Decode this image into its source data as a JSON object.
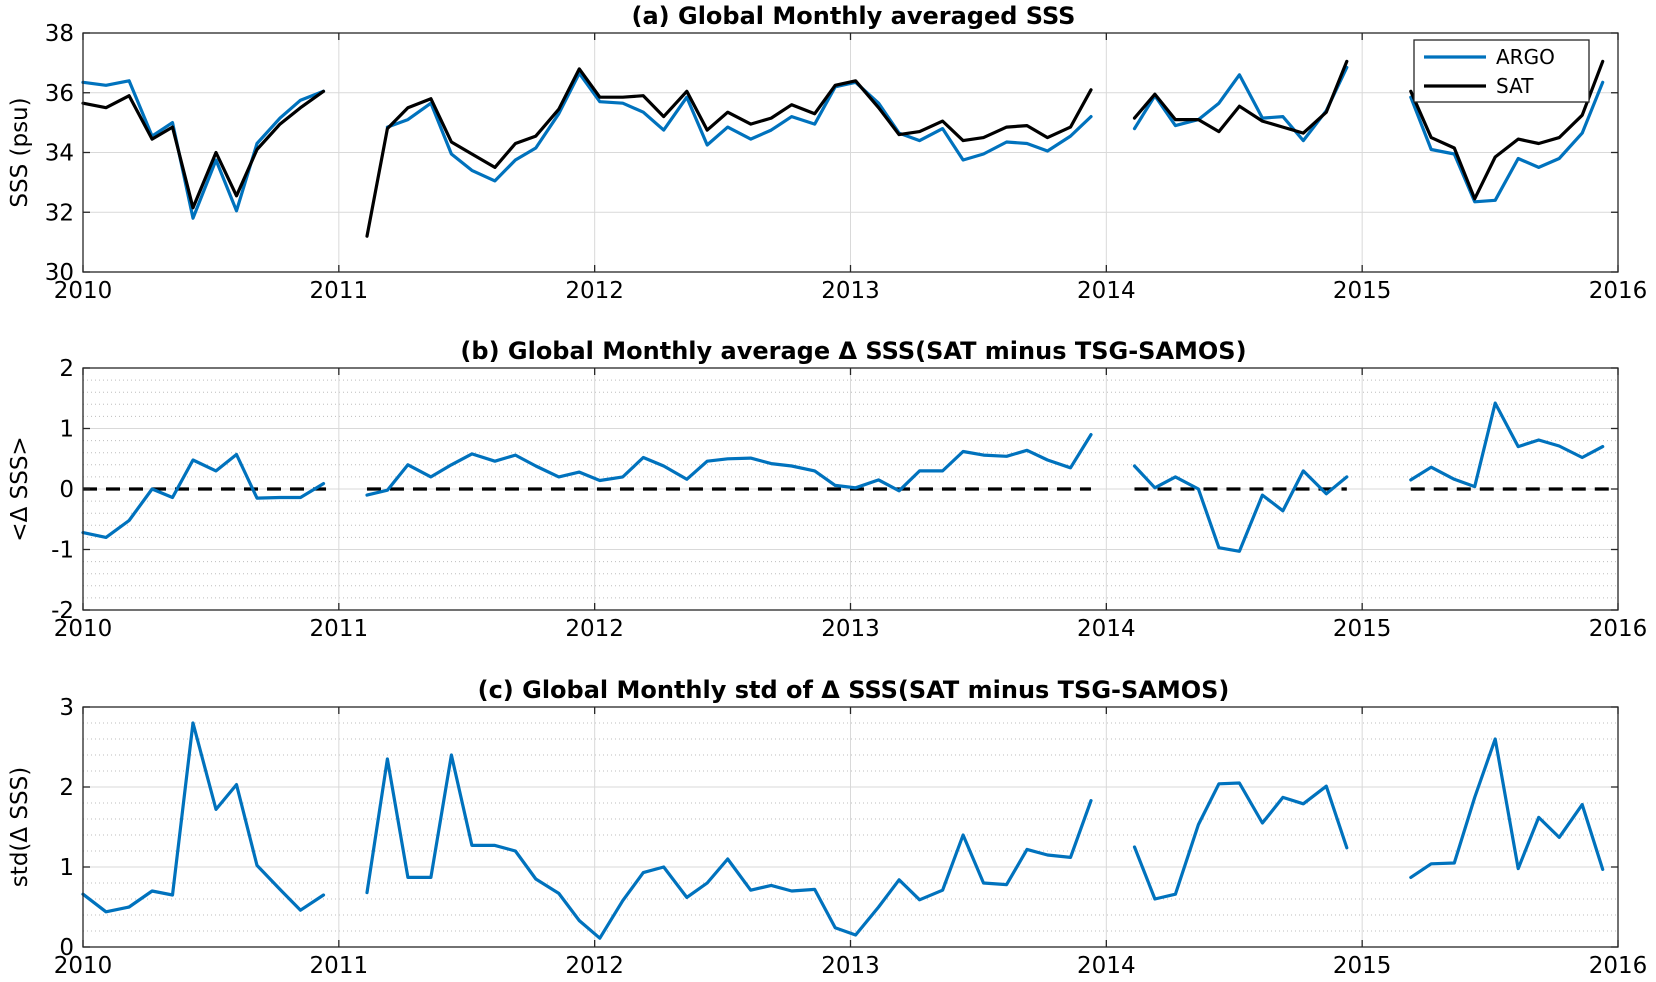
{
  "colors": {
    "argo": "#0072BD",
    "sat": "#000000",
    "grid_major": "#d9d9d9",
    "grid_minor": "#bdbdbd",
    "zero_line": "#000000"
  },
  "chart_data": [
    {
      "type": "line",
      "title": "(a) Global Monthly averaged SSS",
      "xlabel": "",
      "ylabel": "SSS (psu)",
      "xlim": [
        2010,
        2016
      ],
      "ylim": [
        30,
        38
      ],
      "x_ticks": [
        2010,
        2011,
        2012,
        2013,
        2014,
        2015,
        2016
      ],
      "x_tick_labels": [
        "2010",
        "2011",
        "2012",
        "2013",
        "2014",
        "2015",
        "2016"
      ],
      "y_ticks": [
        30,
        32,
        34,
        36,
        38
      ],
      "y_tick_labels": [
        "30",
        "32",
        "34",
        "36",
        "38"
      ],
      "grid": "on",
      "minor_grid": false,
      "legend_position": "top-right",
      "reference_line": null,
      "series": [
        {
          "name": "ARGO",
          "color": "#0072BD",
          "segments": [
            {
              "x": [
                2010.0,
                2010.09,
                2010.18,
                2010.27,
                2010.35,
                2010.43,
                2010.52,
                2010.6,
                2010.68,
                2010.77,
                2010.85,
                2010.94
              ],
              "y": [
                36.35,
                36.25,
                36.4,
                34.55,
                35.0,
                31.8,
                33.75,
                32.05,
                34.3,
                35.15,
                35.75,
                36.05
              ]
            },
            {
              "x": [
                2011.19,
                2011.27,
                2011.36,
                2011.44,
                2011.52,
                2011.61,
                2011.69,
                2011.77,
                2011.86,
                2011.94,
                2012.02,
                2012.11,
                2012.19,
                2012.27,
                2012.36,
                2012.44,
                2012.52,
                2012.61,
                2012.69,
                2012.77,
                2012.86,
                2012.94,
                2013.02,
                2013.11,
                2013.19,
                2013.27,
                2013.36,
                2013.44,
                2013.52,
                2013.61,
                2013.69,
                2013.77,
                2013.86,
                2013.94
              ],
              "y": [
                34.85,
                35.1,
                35.65,
                33.95,
                33.4,
                33.05,
                33.75,
                34.15,
                35.3,
                36.65,
                35.7,
                35.65,
                35.35,
                34.75,
                35.85,
                34.25,
                34.85,
                34.45,
                34.75,
                35.2,
                34.95,
                36.2,
                36.35,
                35.65,
                34.65,
                34.4,
                34.8,
                33.75,
                33.95,
                34.35,
                34.3,
                34.05,
                34.55,
                35.2
              ]
            },
            {
              "x": [
                2014.11,
                2014.19,
                2014.27,
                2014.36,
                2014.44,
                2014.52,
                2014.61,
                2014.69,
                2014.77,
                2014.86,
                2014.94
              ],
              "y": [
                34.8,
                35.9,
                34.9,
                35.1,
                35.65,
                36.6,
                35.15,
                35.2,
                34.4,
                35.4,
                36.85
              ]
            },
            {
              "x": [
                2015.19,
                2015.27,
                2015.36,
                2015.44,
                2015.52,
                2015.61,
                2015.69,
                2015.77,
                2015.86,
                2015.94
              ],
              "y": [
                35.85,
                34.1,
                33.95,
                32.35,
                32.4,
                33.8,
                33.5,
                33.8,
                34.65,
                36.35
              ]
            }
          ]
        },
        {
          "name": "SAT",
          "color": "#000000",
          "segments": [
            {
              "x": [
                2010.0,
                2010.09,
                2010.18,
                2010.27,
                2010.35,
                2010.43,
                2010.52,
                2010.6,
                2010.68,
                2010.77,
                2010.85,
                2010.94
              ],
              "y": [
                35.65,
                35.5,
                35.9,
                34.45,
                34.85,
                32.15,
                34.0,
                32.55,
                34.1,
                34.95,
                35.5,
                36.05
              ]
            },
            {
              "x": [
                2011.11,
                2011.19,
                2011.27,
                2011.36,
                2011.44,
                2011.52,
                2011.61,
                2011.69,
                2011.77,
                2011.86,
                2011.94,
                2012.02,
                2012.11,
                2012.19,
                2012.27,
                2012.36,
                2012.44,
                2012.52,
                2012.61,
                2012.69,
                2012.77,
                2012.86,
                2012.94,
                2013.02,
                2013.11,
                2013.19,
                2013.27,
                2013.36,
                2013.44,
                2013.52,
                2013.61,
                2013.69,
                2013.77,
                2013.86,
                2013.94
              ],
              "y": [
                31.2,
                34.8,
                35.5,
                35.8,
                34.35,
                33.95,
                33.5,
                34.3,
                34.55,
                35.45,
                36.8,
                35.85,
                35.85,
                35.9,
                35.2,
                36.05,
                34.75,
                35.35,
                34.95,
                35.15,
                35.6,
                35.3,
                36.25,
                36.4,
                35.5,
                34.6,
                34.7,
                35.05,
                34.4,
                34.5,
                34.85,
                34.9,
                34.5,
                34.85,
                36.1
              ]
            },
            {
              "x": [
                2014.11,
                2014.19,
                2014.27,
                2014.36,
                2014.44,
                2014.52,
                2014.61,
                2014.69,
                2014.77,
                2014.86,
                2014.94
              ],
              "y": [
                35.15,
                35.95,
                35.1,
                35.1,
                34.7,
                35.55,
                35.05,
                34.85,
                34.65,
                35.35,
                37.05
              ]
            },
            {
              "x": [
                2015.19,
                2015.27,
                2015.36,
                2015.44,
                2015.52,
                2015.61,
                2015.69,
                2015.77,
                2015.86,
                2015.94
              ],
              "y": [
                36.05,
                34.5,
                34.15,
                32.45,
                33.85,
                34.45,
                34.3,
                34.5,
                35.25,
                37.05
              ]
            }
          ]
        }
      ]
    },
    {
      "type": "line",
      "title": "(b) Global Monthly average Δ SSS(SAT minus TSG-SAMOS)",
      "xlabel": "",
      "ylabel": "<Δ SSS>",
      "xlim": [
        2010,
        2016
      ],
      "ylim": [
        -2,
        2
      ],
      "x_ticks": [
        2010,
        2011,
        2012,
        2013,
        2014,
        2015,
        2016
      ],
      "x_tick_labels": [
        "2010",
        "2011",
        "2012",
        "2013",
        "2014",
        "2015",
        "2016"
      ],
      "y_ticks": [
        -2,
        -1,
        0,
        1,
        2
      ],
      "y_tick_labels": [
        "-2",
        "-1",
        "0",
        "1",
        "2"
      ],
      "grid": "on",
      "minor_grid": true,
      "legend_position": "none",
      "reference_line": {
        "y": 0,
        "style": "dashed",
        "segments": [
          [
            2010.0,
            2010.95
          ],
          [
            2011.11,
            2013.94
          ],
          [
            2014.11,
            2014.94
          ],
          [
            2015.19,
            2015.98
          ]
        ]
      },
      "series": [
        {
          "name": "",
          "color": "#0072BD",
          "segments": [
            {
              "x": [
                2010.0,
                2010.09,
                2010.18,
                2010.27,
                2010.35,
                2010.43,
                2010.52,
                2010.6,
                2010.68,
                2010.77,
                2010.85,
                2010.94
              ],
              "y": [
                -0.72,
                -0.8,
                -0.52,
                0.0,
                -0.14,
                0.48,
                0.3,
                0.57,
                -0.15,
                -0.14,
                -0.14,
                0.09
              ]
            },
            {
              "x": [
                2011.11,
                2011.19,
                2011.27,
                2011.36,
                2011.44,
                2011.52,
                2011.61,
                2011.69,
                2011.77,
                2011.86,
                2011.94,
                2012.02,
                2012.11,
                2012.19,
                2012.27,
                2012.36,
                2012.44,
                2012.52,
                2012.61,
                2012.69,
                2012.77,
                2012.86,
                2012.94,
                2013.02,
                2013.11,
                2013.19,
                2013.27,
                2013.36,
                2013.44,
                2013.52,
                2013.61,
                2013.69,
                2013.77,
                2013.86,
                2013.94
              ],
              "y": [
                -0.1,
                -0.02,
                0.4,
                0.2,
                0.4,
                0.58,
                0.46,
                0.56,
                0.38,
                0.2,
                0.28,
                0.14,
                0.2,
                0.52,
                0.38,
                0.16,
                0.46,
                0.5,
                0.51,
                0.42,
                0.38,
                0.3,
                0.06,
                0.02,
                0.15,
                -0.03,
                0.3,
                0.3,
                0.62,
                0.56,
                0.54,
                0.64,
                0.48,
                0.35,
                0.9
              ]
            },
            {
              "x": [
                2014.11,
                2014.19,
                2014.27,
                2014.36,
                2014.44,
                2014.52,
                2014.61,
                2014.69,
                2014.77,
                2014.86,
                2014.94
              ],
              "y": [
                0.38,
                0.02,
                0.2,
                0.0,
                -0.97,
                -1.03,
                -0.1,
                -0.36,
                0.3,
                -0.08,
                0.2
              ]
            },
            {
              "x": [
                2015.19,
                2015.27,
                2015.36,
                2015.44,
                2015.52,
                2015.61,
                2015.69,
                2015.77,
                2015.86,
                2015.94
              ],
              "y": [
                0.15,
                0.36,
                0.16,
                0.04,
                1.42,
                0.7,
                0.81,
                0.71,
                0.52,
                0.7
              ]
            }
          ]
        }
      ]
    },
    {
      "type": "line",
      "title": "(c) Global Monthly std of Δ SSS(SAT minus TSG-SAMOS)",
      "xlabel": "",
      "ylabel": "std(Δ SSS)",
      "xlim": [
        2010,
        2016
      ],
      "ylim": [
        0,
        3
      ],
      "x_ticks": [
        2010,
        2011,
        2012,
        2013,
        2014,
        2015,
        2016
      ],
      "x_tick_labels": [
        "2010",
        "2011",
        "2012",
        "2013",
        "2014",
        "2015",
        "2016"
      ],
      "y_ticks": [
        0,
        1,
        2,
        3
      ],
      "y_tick_labels": [
        "0",
        "1",
        "2",
        "3"
      ],
      "grid": "on",
      "minor_grid": true,
      "legend_position": "none",
      "reference_line": null,
      "series": [
        {
          "name": "",
          "color": "#0072BD",
          "segments": [
            {
              "x": [
                2010.0,
                2010.09,
                2010.18,
                2010.27,
                2010.35,
                2010.43,
                2010.52,
                2010.6,
                2010.68,
                2010.77,
                2010.85,
                2010.94
              ],
              "y": [
                0.66,
                0.44,
                0.5,
                0.7,
                0.65,
                2.8,
                1.72,
                2.03,
                1.02,
                0.72,
                0.46,
                0.65
              ]
            },
            {
              "x": [
                2011.11,
                2011.19,
                2011.27,
                2011.36,
                2011.44,
                2011.52,
                2011.61,
                2011.69,
                2011.77,
                2011.86,
                2011.94,
                2012.02,
                2012.11,
                2012.19,
                2012.27,
                2012.36,
                2012.44,
                2012.52,
                2012.61,
                2012.69,
                2012.77,
                2012.86,
                2012.94,
                2013.02,
                2013.11,
                2013.19,
                2013.27,
                2013.36,
                2013.44,
                2013.52,
                2013.61,
                2013.69,
                2013.77,
                2013.86,
                2013.94
              ],
              "y": [
                0.68,
                2.35,
                0.87,
                0.87,
                2.4,
                1.27,
                1.27,
                1.2,
                0.85,
                0.67,
                0.33,
                0.11,
                0.58,
                0.93,
                1.0,
                0.62,
                0.8,
                1.1,
                0.71,
                0.77,
                0.7,
                0.72,
                0.24,
                0.15,
                0.5,
                0.84,
                0.59,
                0.71,
                1.4,
                0.8,
                0.78,
                1.22,
                1.15,
                1.12,
                1.83
              ]
            },
            {
              "x": [
                2014.11,
                2014.19,
                2014.27,
                2014.36,
                2014.44,
                2014.52,
                2014.61,
                2014.69,
                2014.77,
                2014.86,
                2014.94
              ],
              "y": [
                1.25,
                0.6,
                0.66,
                1.53,
                2.04,
                2.05,
                1.55,
                1.87,
                1.79,
                2.01,
                1.24
              ]
            },
            {
              "x": [
                2015.19,
                2015.27,
                2015.36,
                2015.44,
                2015.52,
                2015.61,
                2015.69,
                2015.77,
                2015.86,
                2015.94
              ],
              "y": [
                0.87,
                1.04,
                1.05,
                1.87,
                2.6,
                0.98,
                1.62,
                1.37,
                1.78,
                0.97
              ]
            }
          ]
        }
      ]
    }
  ]
}
